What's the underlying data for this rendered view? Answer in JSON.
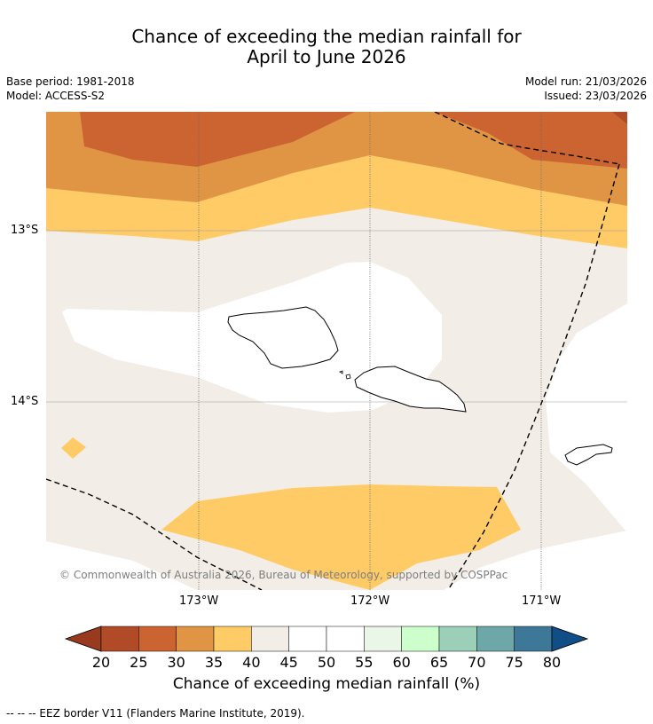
{
  "title": {
    "line1": "Chance of exceeding the median rainfall for",
    "line2": "April to June 2026"
  },
  "meta": {
    "base_period": "Base period: 1981-2018",
    "model": "Model: ACCESS-S2",
    "model_run": "Model run: 21/03/2026",
    "issued": "Issued: 23/03/2026"
  },
  "axes": {
    "lat_labels": [
      "13°S",
      "14°S"
    ],
    "lon_labels": [
      "173°W",
      "172°W",
      "171°W"
    ]
  },
  "copyright": "© Commonwealth of Australia 2026, Bureau of Meteorology, supported by COSPPac",
  "colorbar": {
    "ticks": [
      "20",
      "25",
      "30",
      "35",
      "40",
      "45",
      "50",
      "55",
      "60",
      "65",
      "70",
      "75",
      "80"
    ],
    "colors": [
      "#993a1e",
      "#b14b27",
      "#cc6431",
      "#e09545",
      "#fecb66",
      "#f2ede6",
      "#ffffff",
      "#ffffff",
      "#eaf6e8",
      "#ccffcc",
      "#9ccfb8",
      "#6ea7a8",
      "#3d7899",
      "#114d86"
    ],
    "title": "Chance of exceeding median rainfall (%)"
  },
  "footnote": "--  --  -- EEZ border V11 (Flanders Marine Institute, 2019)."
}
